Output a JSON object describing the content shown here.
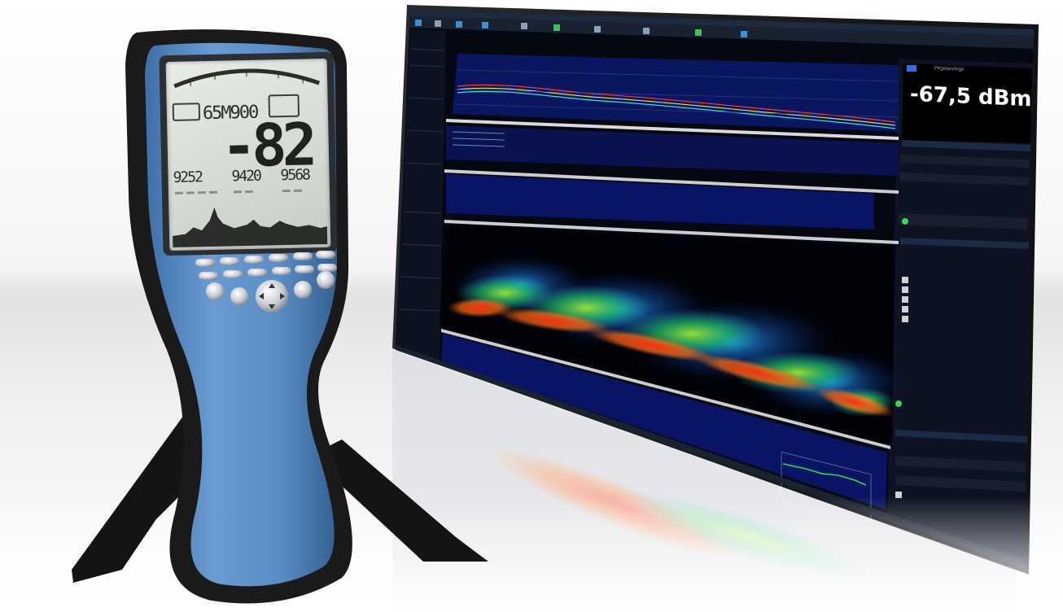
{
  "software": {
    "level_readout": "-67,5 dBm",
    "level_header": "Pegelanzeige"
  },
  "handheld": {
    "frequency_display": "65M900",
    "level_display": "-82",
    "marker_values": [
      "9252",
      "9420",
      "9568"
    ]
  },
  "colors": {
    "device_body": "#5b8ec4",
    "device_rubber": "#1a1a1a",
    "screen_bg": "#000814",
    "spectrum_hot": "#ff2a1a",
    "spectrum_mid": "#3adf3a",
    "spectrum_cool": "#1a6cff"
  }
}
